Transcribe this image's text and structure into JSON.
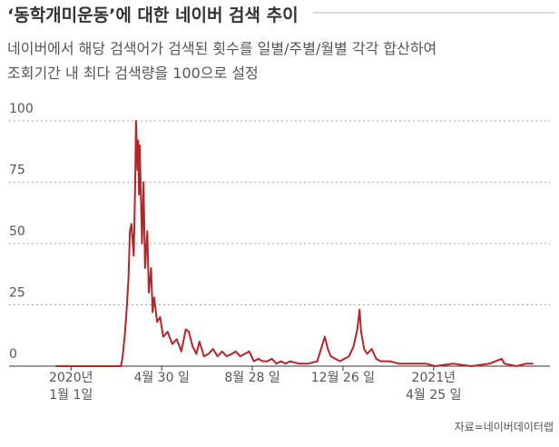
{
  "chart_data": {
    "type": "line",
    "title": "‘동학개미운동’에 대한 네이버 검색 추이",
    "subtitle": [
      "네이버에서 해당 검색어가 검색된 횟수를 일별/주별/월별 각각 합산하여",
      "조회기간 내 최다 검색량을 100으로 설정"
    ],
    "source": "자료=네이버데이터랩",
    "xlim": [
      -82,
      634
    ],
    "xticks": [
      {
        "value": 0,
        "label": "2020년\n1월 1일"
      },
      {
        "value": 120,
        "label": "4월 30 일"
      },
      {
        "value": 240,
        "label": "8월 28 일"
      },
      {
        "value": 360,
        "label": "12월 26 일"
      },
      {
        "value": 480,
        "label": "2021년\n4월 25 일"
      }
    ],
    "ylim": [
      0,
      100
    ],
    "yticks": [
      0,
      25,
      50,
      75,
      100
    ],
    "grid": true,
    "series": [
      {
        "color": "#b3262a",
        "x": [
          -20,
          66,
          68,
          71,
          73,
          76,
          78,
          80,
          83,
          85,
          86,
          88,
          89,
          90,
          91,
          94,
          96,
          98,
          101,
          103,
          106,
          108,
          110,
          114,
          118,
          122,
          128,
          134,
          140,
          146,
          152,
          156,
          161,
          166,
          170,
          176,
          182,
          188,
          194,
          200,
          206,
          213,
          218,
          224,
          230,
          236,
          242,
          248,
          254,
          260,
          266,
          272,
          278,
          284,
          290,
          302,
          314,
          326,
          332,
          336,
          340,
          344,
          350,
          356,
          362,
          368,
          374,
          379,
          382,
          384,
          388,
          392,
          398,
          404,
          410,
          422,
          434,
          446,
          458,
          470,
          482,
          506,
          530,
          554,
          570,
          574,
          590,
          602,
          612
        ],
        "values": [
          0,
          0,
          3,
          12,
          20,
          35,
          55,
          58,
          45,
          75,
          100,
          80,
          92,
          70,
          90,
          50,
          75,
          40,
          55,
          30,
          40,
          22,
          28,
          18,
          20,
          12,
          14,
          9,
          11,
          6,
          15,
          14,
          8,
          5,
          10,
          4,
          5,
          7,
          4,
          6,
          4,
          5,
          6,
          4,
          5,
          6,
          2,
          3,
          2,
          2,
          3,
          1,
          2,
          1,
          2,
          1,
          1,
          2,
          8,
          12,
          7,
          4,
          3,
          2,
          3,
          4,
          8,
          15,
          23,
          14,
          7,
          5,
          7,
          3,
          2,
          2,
          1,
          1,
          1,
          1,
          0,
          1,
          0,
          1,
          3,
          1,
          0,
          1,
          1
        ]
      }
    ]
  }
}
